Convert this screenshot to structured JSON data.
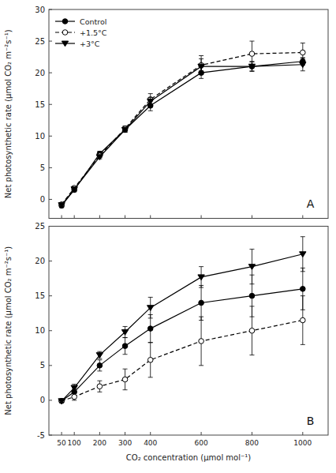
{
  "chart_data": [
    {
      "type": "line",
      "x": [
        50,
        100,
        200,
        300,
        400,
        600,
        800,
        1000
      ],
      "xlim": [
        0,
        1100
      ],
      "xticks": [
        50,
        100,
        200,
        300,
        400,
        600,
        800,
        1000
      ],
      "ylim": [
        -3,
        30
      ],
      "yticks": [
        0,
        5,
        10,
        15,
        20,
        25,
        30
      ],
      "ylabel": "Net photosynthetic rate (μmol CO₂ m⁻²s⁻¹)",
      "tick_labels": "y",
      "grid": false,
      "legend": "upper left",
      "annotations": [
        "A"
      ],
      "series": [
        {
          "name": "Control",
          "color": "black",
          "marker": "circle",
          "line_style": "solid",
          "values": [
            -1.0,
            1.5,
            7.2,
            11.0,
            14.8,
            20.0,
            21.0,
            21.8
          ],
          "errors": [
            0.3,
            0.3,
            0.4,
            0.4,
            0.8,
            0.9,
            0.7,
            0.6
          ]
        },
        {
          "name": "+1.5°C",
          "color": "black",
          "marker": "circle-open",
          "line_style": "dashed",
          "values": [
            -0.8,
            1.8,
            6.9,
            11.2,
            15.8,
            21.2,
            23.0,
            23.2
          ],
          "errors": [
            0.3,
            0.3,
            0.3,
            0.4,
            0.9,
            1.5,
            2.0,
            1.5
          ]
        },
        {
          "name": "+3°C",
          "color": "black",
          "marker": "triangle-down",
          "line_style": "solid",
          "values": [
            -0.9,
            1.6,
            6.7,
            11.0,
            15.5,
            21.0,
            21.0,
            21.3
          ],
          "errors": [
            0.3,
            0.3,
            0.3,
            0.4,
            0.6,
            1.2,
            0.8,
            1.0
          ]
        }
      ]
    },
    {
      "type": "line",
      "x": [
        50,
        100,
        200,
        300,
        400,
        600,
        800,
        1000
      ],
      "xlim": [
        0,
        1100
      ],
      "xticks": [
        50,
        100,
        200,
        300,
        400,
        600,
        800,
        1000
      ],
      "ylim": [
        -5,
        25
      ],
      "yticks": [
        -5,
        0,
        5,
        10,
        15,
        20,
        25
      ],
      "xlabel": "CO₂ concentration (μmol mol⁻¹)",
      "ylabel": "Net photosynthetic rate (μmol CO₂ m⁻²s⁻¹)",
      "grid": false,
      "annotations": [
        "B"
      ],
      "series": [
        {
          "color": "black",
          "marker": "circle",
          "line_style": "solid",
          "values": [
            -0.1,
            1.2,
            5.0,
            7.8,
            10.3,
            14.0,
            15.0,
            16.0
          ],
          "errors": [
            0.2,
            0.5,
            0.8,
            1.2,
            2.0,
            2.5,
            3.0,
            3.0
          ]
        },
        {
          "color": "black",
          "marker": "circle-open",
          "line_style": "dashed",
          "values": [
            -0.1,
            0.5,
            2.0,
            3.0,
            5.8,
            8.5,
            10.0,
            11.5
          ],
          "errors": [
            0.2,
            0.5,
            0.8,
            1.5,
            2.5,
            3.5,
            3.5,
            3.5
          ]
        },
        {
          "color": "black",
          "marker": "triangle-down",
          "line_style": "solid",
          "values": [
            -0.1,
            1.8,
            6.5,
            9.8,
            13.3,
            17.7,
            19.2,
            21.0
          ],
          "errors": [
            0.2,
            0.5,
            0.5,
            0.8,
            1.5,
            1.5,
            2.5,
            2.5
          ]
        }
      ]
    }
  ]
}
